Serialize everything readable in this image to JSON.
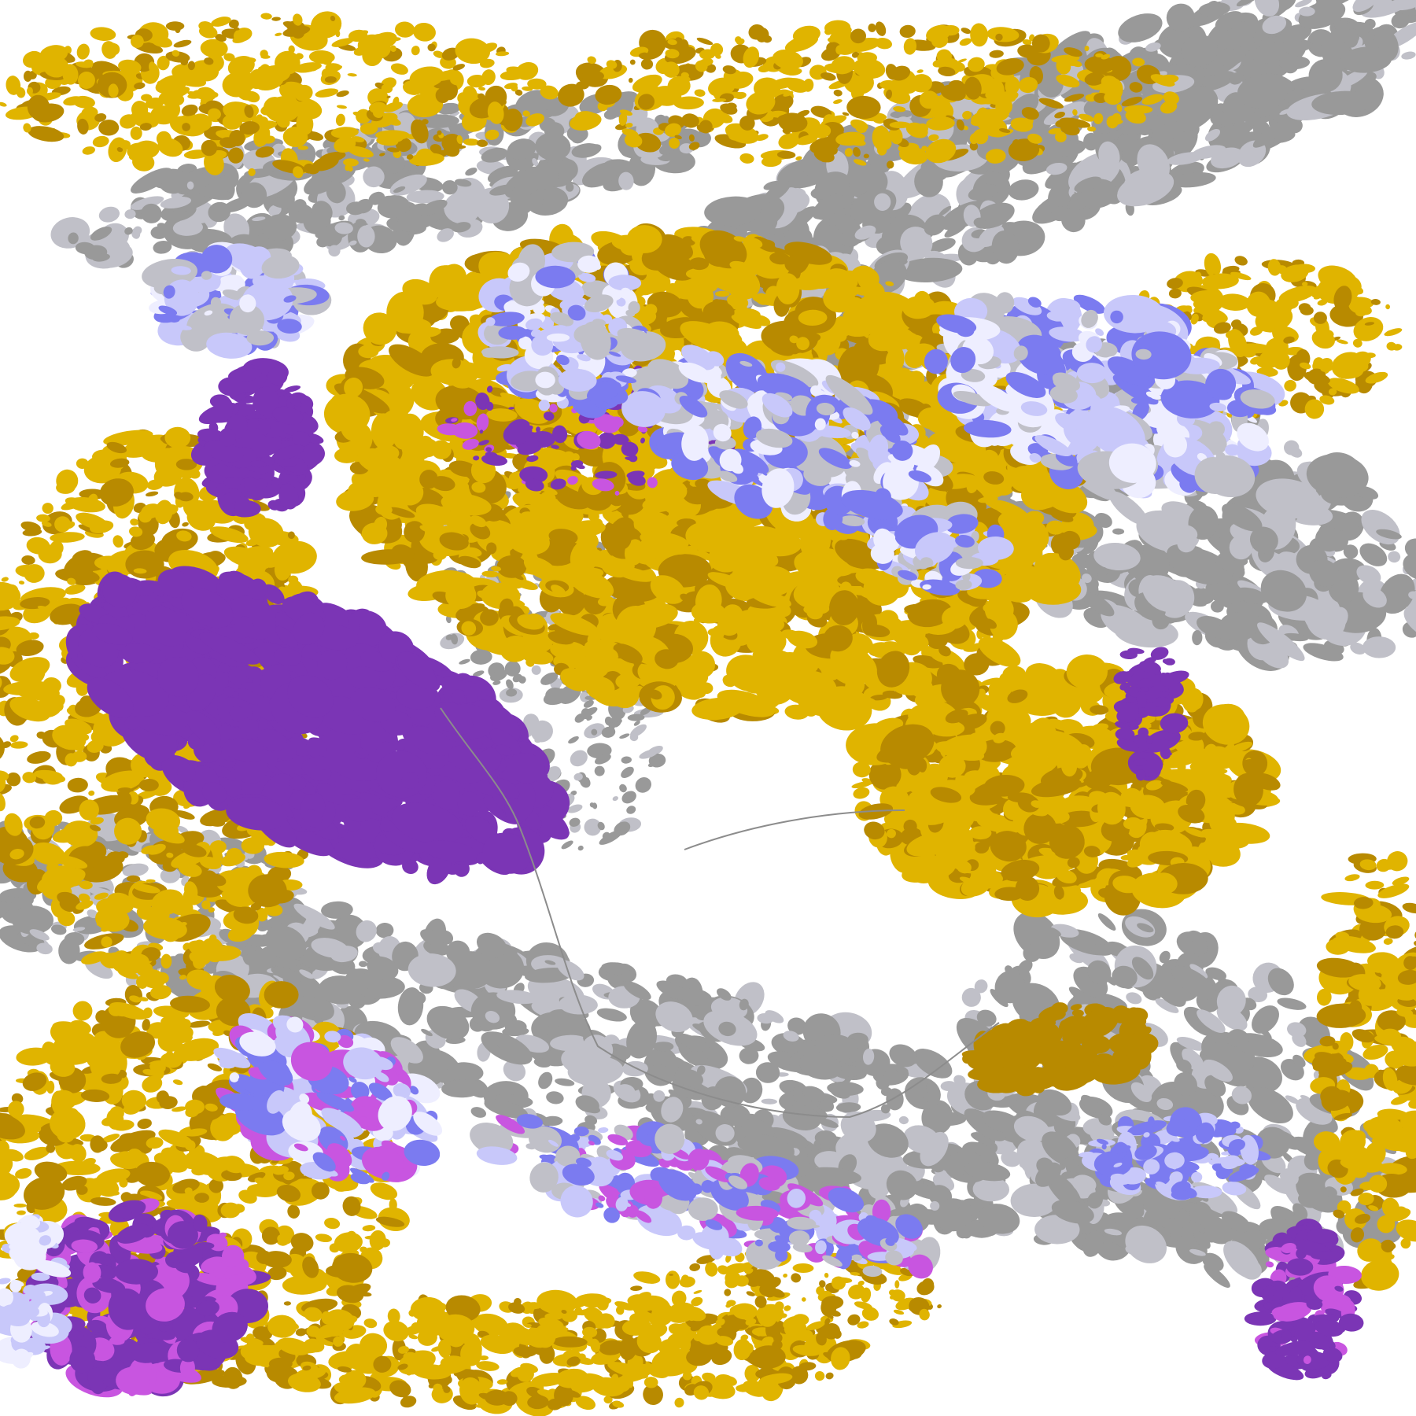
{
  "map": {
    "kind": "satellite cloud-type classification",
    "palette": {
      "clear": "#ffffff",
      "gold_light": "#e0b400",
      "gold_dark": "#b88a00",
      "purple": "#7b35b5",
      "magenta": "#c855e0",
      "gray": "#999999",
      "gray_light": "#c0c0c8",
      "blue": "#7b7bf0",
      "lavender": "#c8c8fa",
      "lavender_pale": "#eeeeff",
      "coastline": "#8c8c8c"
    }
  }
}
